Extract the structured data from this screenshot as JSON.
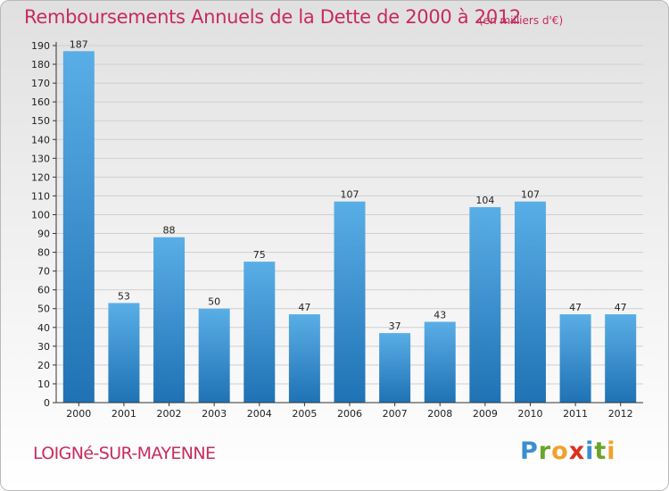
{
  "page": {
    "title": "Remboursements Annuels de la Dette de 2000 à 2012",
    "subtitle": "(en milliers d'€)",
    "town": "LOIGNé-SUR-MAYENNE",
    "logo": [
      "P",
      "r",
      "o",
      "x",
      "i",
      "t",
      "i"
    ]
  },
  "colors": {
    "title": "#c72b5c",
    "bar_light": "#5aaee6",
    "bar_dark": "#1f72b4",
    "axis": "#333333",
    "grid": "#cfcfcf"
  },
  "chart_data": {
    "type": "bar",
    "title": "Remboursements Annuels de la Dette de 2000 à 2012",
    "xlabel": "",
    "ylabel": "",
    "categories": [
      "2000",
      "2001",
      "2002",
      "2003",
      "2004",
      "2005",
      "2006",
      "2007",
      "2008",
      "2009",
      "2010",
      "2011",
      "2012"
    ],
    "values": [
      187,
      53,
      88,
      50,
      75,
      47,
      107,
      37,
      43,
      104,
      107,
      47,
      47
    ],
    "ylim": [
      0,
      190
    ],
    "yticks": [
      0,
      10,
      20,
      30,
      40,
      50,
      60,
      70,
      80,
      90,
      100,
      110,
      120,
      130,
      140,
      150,
      160,
      170,
      180,
      190
    ],
    "grid": "horizontal",
    "legend": "none"
  }
}
